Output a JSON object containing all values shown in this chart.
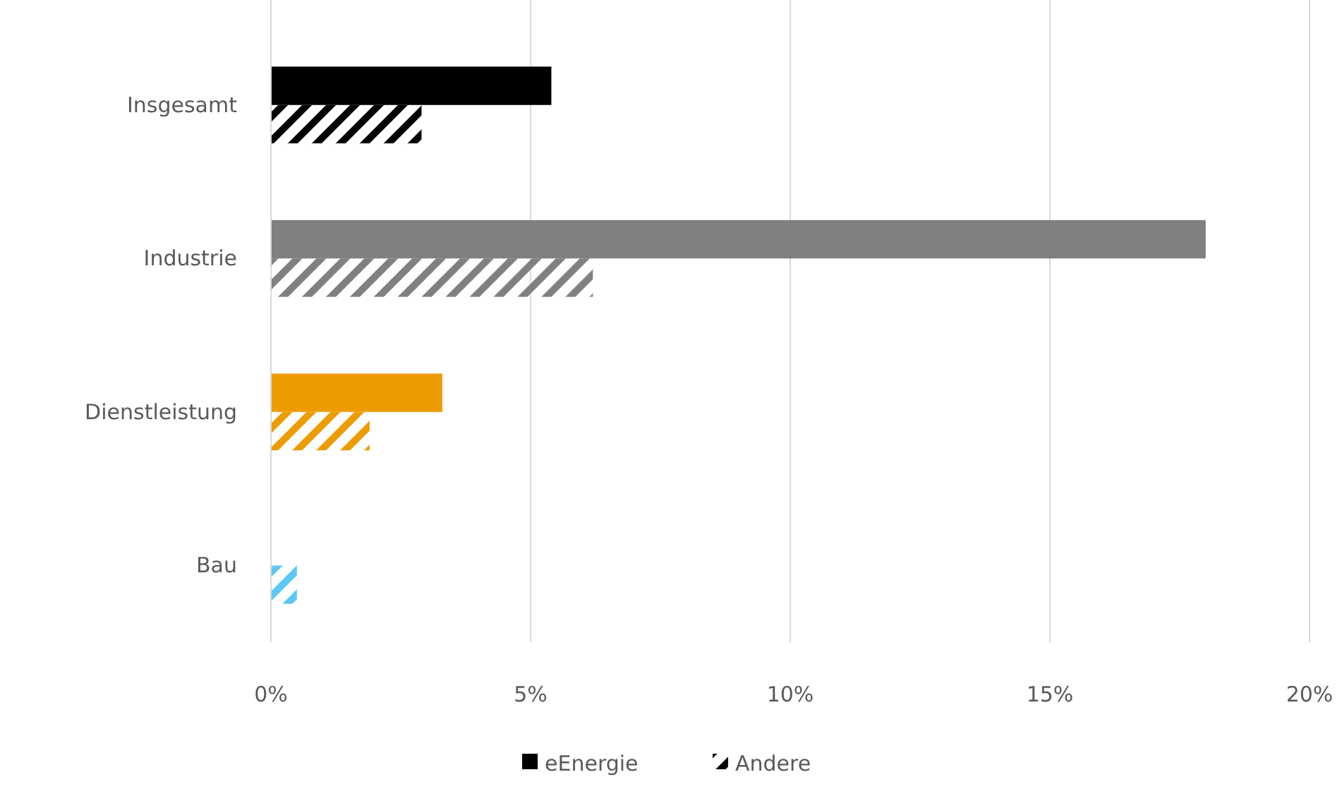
{
  "chart_data": {
    "type": "bar",
    "orientation": "horizontal",
    "categories": [
      "Insgesamt",
      "Industrie",
      "Dienstleistung",
      "Bau"
    ],
    "series": [
      {
        "name": "eEnergie",
        "colors": [
          "#000000",
          "#808080",
          "#ed9c00",
          "#5bc8f5"
        ],
        "values": [
          5.4,
          18.0,
          3.3,
          0
        ]
      },
      {
        "name": "Andere",
        "colors": [
          "#000000",
          "#808080",
          "#ed9c00",
          "#5bc8f5"
        ],
        "values": [
          2.9,
          6.2,
          1.9,
          0.5
        ]
      }
    ],
    "xlim": [
      0,
      20
    ],
    "xticks": [
      {
        "value": 0,
        "label": "0%"
      },
      {
        "value": 5,
        "label": "5%"
      },
      {
        "value": 10,
        "label": "10%"
      },
      {
        "value": 15,
        "label": "15%"
      },
      {
        "value": 20,
        "label": "20%"
      }
    ],
    "grid": "x",
    "legend": "bottom"
  }
}
